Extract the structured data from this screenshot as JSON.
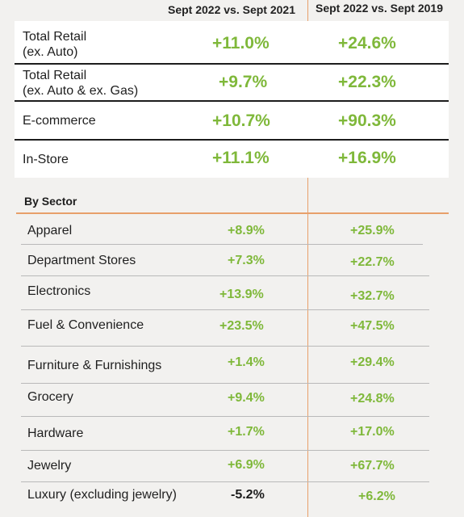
{
  "headers": {
    "col1": "Sept 2022 vs. Sept 2021",
    "col2": "Sept 2022 vs. Sept 2019"
  },
  "totals": [
    {
      "label_line1": "Total Retail",
      "label_line2": "(ex. Auto)",
      "v2021": "+11.0%",
      "v2019": "+24.6%"
    },
    {
      "label_line1": "Total Retail",
      "label_line2": "(ex. Auto & ex. Gas)",
      "v2021": "+9.7%",
      "v2019": "+22.3%"
    },
    {
      "label_line1": "E-commerce",
      "label_line2": "",
      "v2021": "+10.7%",
      "v2019": "+90.3%"
    },
    {
      "label_line1": "In-Store",
      "label_line2": "",
      "v2021": "+11.1%",
      "v2019": "+16.9%"
    }
  ],
  "sector_title": "By Sector",
  "sectors": [
    {
      "label": "Apparel",
      "v2021": "+8.9%",
      "v2019": "+25.9%"
    },
    {
      "label": "Department Stores",
      "v2021": "+7.3%",
      "v2019": "+22.7%"
    },
    {
      "label": "Electronics",
      "v2021": "+13.9%",
      "v2019": "+32.7%"
    },
    {
      "label": "Fuel & Convenience",
      "v2021": "+23.5%",
      "v2019": "+47.5%"
    },
    {
      "label": "Furniture & Furnishings",
      "v2021": "+1.4%",
      "v2019": "+29.4%"
    },
    {
      "label": "Grocery",
      "v2021": "+9.4%",
      "v2019": "+24.8%"
    },
    {
      "label": "Hardware",
      "v2021": "+1.7%",
      "v2019": "+17.0%"
    },
    {
      "label": "Jewelry",
      "v2021": "+6.9%",
      "v2019": "+67.7%"
    },
    {
      "label": "Luxury (excluding jewelry)",
      "v2021": "-5.2%",
      "v2019": "+6.2%"
    }
  ],
  "colors": {
    "positive": "#7fb83a",
    "negative": "#1d1d1d",
    "accent_line": "#e8a06a"
  }
}
